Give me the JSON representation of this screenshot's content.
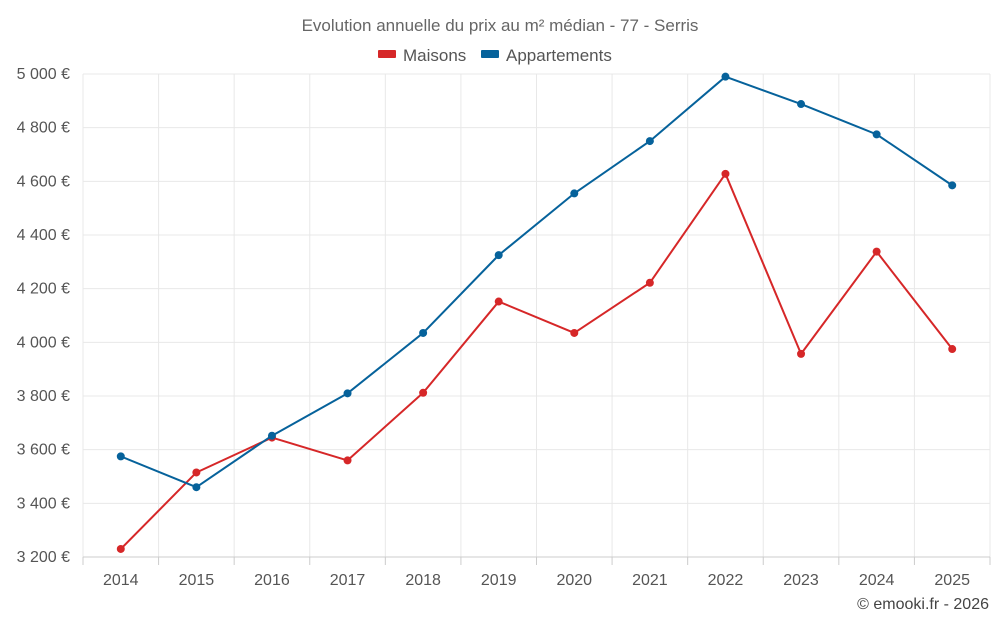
{
  "chart_data": {
    "type": "line",
    "title": "Evolution annuelle du prix au m² médian - 77 - Serris",
    "x": [
      "2014",
      "2015",
      "2016",
      "2017",
      "2018",
      "2019",
      "2020",
      "2021",
      "2022",
      "2023",
      "2024",
      "2025"
    ],
    "series": [
      {
        "name": "Maisons",
        "color": "#d62728",
        "values": [
          3230,
          3515,
          3645,
          3560,
          3812,
          4152,
          4035,
          4222,
          4628,
          3957,
          4338,
          3975
        ]
      },
      {
        "name": "Appartements",
        "color": "#06629b",
        "values": [
          3575,
          3460,
          3652,
          3810,
          4035,
          4325,
          4555,
          4750,
          4990,
          4888,
          4775,
          4585
        ]
      }
    ],
    "ylim": [
      3200,
      5000
    ],
    "yticks": [
      3200,
      3400,
      3600,
      3800,
      4000,
      4200,
      4400,
      4600,
      4800,
      5000
    ],
    "ytick_labels": [
      "3 200 €",
      "3 400 €",
      "3 600 €",
      "3 800 €",
      "4 000 €",
      "4 200 €",
      "4 400 €",
      "4 600 €",
      "4 800 €",
      "5 000 €"
    ],
    "xlabel": "",
    "ylabel": "",
    "grid": true,
    "legend_position": "top-center"
  },
  "footer": {
    "credit": "© emooki.fr - 2026"
  }
}
